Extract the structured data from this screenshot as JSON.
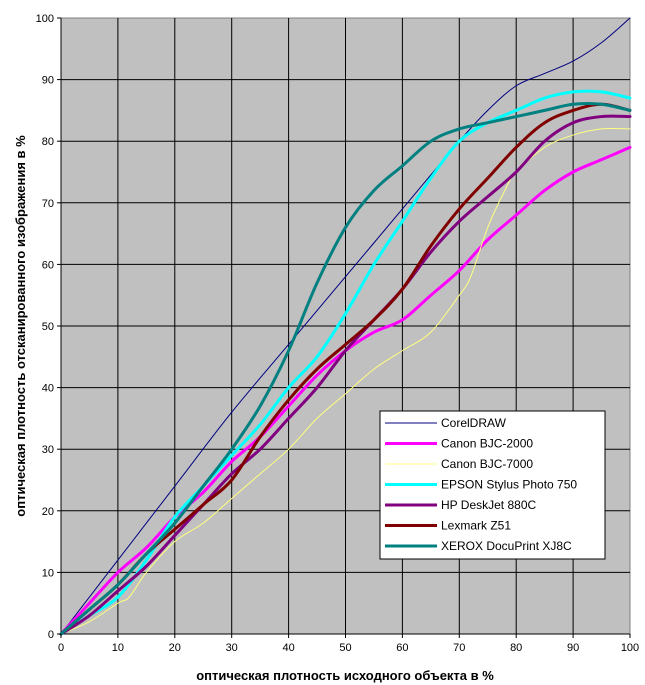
{
  "chart_data": {
    "type": "line",
    "xlabel": "оптическая плотность исходного объекта в %",
    "ylabel": "оптическая плотность отсканированного изображения в %",
    "xlim": [
      0,
      100
    ],
    "ylim": [
      0,
      100
    ],
    "x_ticks": [
      0,
      10,
      20,
      30,
      40,
      50,
      60,
      70,
      80,
      90,
      100
    ],
    "y_ticks": [
      0,
      10,
      20,
      30,
      40,
      50,
      60,
      70,
      80,
      90,
      100
    ],
    "grid": true,
    "plot_background": "#c0c0c0",
    "legend_position": "bottom-right",
    "series": [
      {
        "name": "CorelDRAW",
        "color": "#000080",
        "width": 1,
        "x": [
          0,
          10,
          20,
          30,
          40,
          50,
          60,
          70,
          75,
          80,
          85,
          90,
          95,
          100
        ],
        "y": [
          0,
          12,
          24,
          36,
          47,
          58,
          69,
          80,
          85,
          89,
          91,
          93,
          96,
          100
        ]
      },
      {
        "name": "Canon BJC-2000",
        "color": "#ff00ff",
        "width": 3,
        "x": [
          0,
          5,
          10,
          15,
          20,
          25,
          30,
          35,
          40,
          45,
          50,
          55,
          60,
          65,
          70,
          75,
          80,
          85,
          90,
          95,
          100
        ],
        "y": [
          0,
          5,
          10,
          14,
          19,
          23,
          28,
          32,
          37,
          42,
          46,
          49,
          51,
          55,
          59,
          64,
          68,
          72,
          75,
          77,
          79
        ]
      },
      {
        "name": "Canon BJC-7000",
        "color": "#ffff80",
        "width": 1,
        "x": [
          0,
          5,
          10,
          12,
          15,
          20,
          25,
          30,
          35,
          40,
          45,
          50,
          55,
          60,
          65,
          70,
          72,
          75,
          78,
          80,
          85,
          90,
          95,
          100
        ],
        "y": [
          0,
          2,
          5,
          6,
          10,
          15,
          18,
          22,
          26,
          30,
          35,
          39,
          43,
          46,
          49,
          55,
          58,
          66,
          72,
          75,
          79,
          81,
          82,
          82
        ]
      },
      {
        "name": "EPSON Stylus Photo 750",
        "color": "#00ffff",
        "width": 3,
        "x": [
          0,
          5,
          10,
          15,
          20,
          25,
          30,
          35,
          40,
          45,
          50,
          55,
          60,
          65,
          70,
          75,
          80,
          85,
          90,
          95,
          100
        ],
        "y": [
          0,
          3,
          6,
          12,
          19,
          24,
          29,
          34,
          40,
          45,
          52,
          60,
          67,
          74,
          80,
          83,
          85,
          87,
          88,
          88,
          87
        ]
      },
      {
        "name": "HP DeskJet 880C",
        "color": "#800080",
        "width": 3,
        "x": [
          0,
          5,
          10,
          15,
          20,
          25,
          30,
          35,
          40,
          45,
          50,
          55,
          60,
          65,
          70,
          75,
          80,
          85,
          90,
          95,
          100
        ],
        "y": [
          0,
          3,
          7,
          11,
          16,
          21,
          26,
          30,
          35,
          40,
          46,
          51,
          56,
          62,
          67,
          71,
          75,
          80,
          83,
          84,
          84
        ]
      },
      {
        "name": "Lexmark Z51",
        "color": "#800000",
        "width": 3,
        "x": [
          0,
          5,
          10,
          15,
          20,
          25,
          30,
          35,
          40,
          45,
          50,
          55,
          60,
          65,
          70,
          75,
          80,
          85,
          90,
          95,
          100
        ],
        "y": [
          0,
          4,
          8,
          13,
          17,
          21,
          25,
          32,
          38,
          43,
          47,
          51,
          56,
          63,
          69,
          74,
          79,
          83,
          85,
          86,
          85
        ]
      },
      {
        "name": "XEROX DocuPrint XJ8C",
        "color": "#008080",
        "width": 3,
        "x": [
          0,
          5,
          10,
          15,
          20,
          25,
          30,
          35,
          40,
          45,
          50,
          55,
          60,
          65,
          70,
          75,
          80,
          85,
          90,
          95,
          100
        ],
        "y": [
          0,
          4,
          8,
          13,
          18,
          24,
          30,
          37,
          46,
          57,
          66,
          72,
          76,
          80,
          82,
          83,
          84,
          85,
          86,
          86,
          85
        ]
      }
    ]
  }
}
